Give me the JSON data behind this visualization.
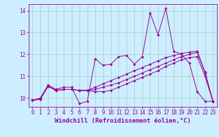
{
  "background_color": "#cceeff",
  "grid_color": "#aaccbb",
  "line_color": "#990099",
  "marker_color": "#990099",
  "xlabel": "Windchill (Refroidissement éolien,°C)",
  "xlabel_fontsize": 6.5,
  "yticks": [
    10,
    11,
    12,
    13,
    14
  ],
  "xticks": [
    0,
    1,
    2,
    3,
    4,
    5,
    6,
    7,
    8,
    9,
    10,
    11,
    12,
    13,
    14,
    15,
    16,
    17,
    18,
    19,
    20,
    21,
    22,
    23
  ],
  "xlim": [
    -0.5,
    23.5
  ],
  "ylim": [
    9.6,
    14.3
  ],
  "tick_fontsize": 5.5,
  "series": [
    [
      9.9,
      10.0,
      10.6,
      10.4,
      10.5,
      10.5,
      9.75,
      9.85,
      11.8,
      11.5,
      11.55,
      11.9,
      11.95,
      11.55,
      11.9,
      13.9,
      12.9,
      14.1,
      12.15,
      12.0,
      11.6,
      10.3,
      9.85,
      9.85
    ],
    [
      9.9,
      9.95,
      10.55,
      10.35,
      10.4,
      10.4,
      10.35,
      10.35,
      10.3,
      10.3,
      10.35,
      10.5,
      10.65,
      10.8,
      10.95,
      11.1,
      11.25,
      11.45,
      11.6,
      11.75,
      11.85,
      11.9,
      11.0,
      9.85
    ],
    [
      9.9,
      9.95,
      10.55,
      10.35,
      10.4,
      10.4,
      10.35,
      10.35,
      10.5,
      10.65,
      10.8,
      10.95,
      11.1,
      11.25,
      11.4,
      11.55,
      11.7,
      11.85,
      11.95,
      12.05,
      12.1,
      12.15,
      11.2,
      9.85
    ],
    [
      9.9,
      9.95,
      10.55,
      10.35,
      10.4,
      10.4,
      10.35,
      10.35,
      10.4,
      10.5,
      10.6,
      10.7,
      10.85,
      11.0,
      11.15,
      11.3,
      11.45,
      11.6,
      11.75,
      11.9,
      12.0,
      12.1,
      11.15,
      9.85
    ]
  ]
}
